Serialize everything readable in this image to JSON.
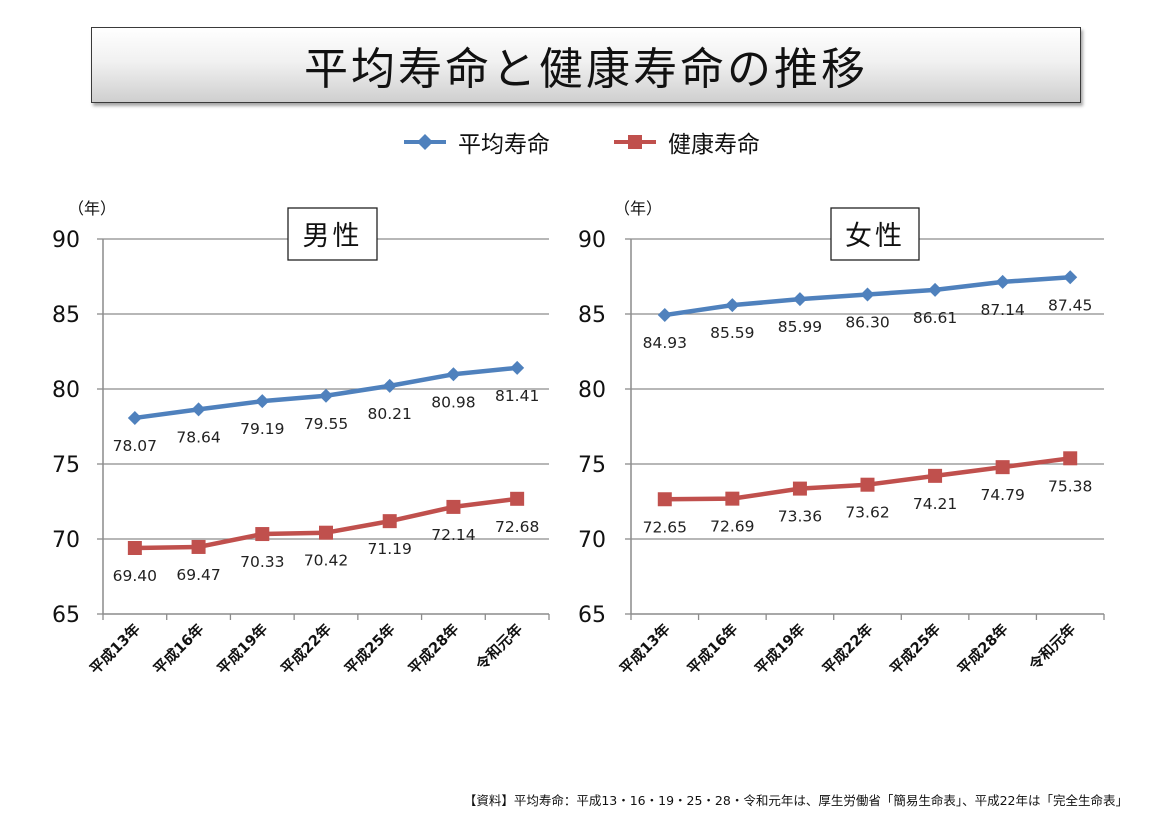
{
  "title": "平均寿命と健康寿命の推移",
  "legend": {
    "series1": "平均寿命",
    "series2": "健康寿命"
  },
  "colors": {
    "series1": "#4f81bd",
    "series2": "#c0504d",
    "grid": "#8c8c8c"
  },
  "source_note": "【資料】平均寿命：平成13・16・19・25・28・令和元年は、厚生労働省「簡易生命表」、平成22年は「完全生命表」",
  "chart_data": [
    {
      "type": "line",
      "title": "男性",
      "unit_label": "（年）",
      "categories": [
        "平成13年",
        "平成16年",
        "平成19年",
        "平成22年",
        "平成25年",
        "平成28年",
        "令和元年"
      ],
      "y_ticks": [
        65,
        70,
        75,
        80,
        85,
        90
      ],
      "ylim": [
        65,
        90
      ],
      "grid": true,
      "series": [
        {
          "name": "平均寿命",
          "marker": "diamond",
          "values": [
            78.07,
            78.64,
            79.19,
            79.55,
            80.21,
            80.98,
            81.41
          ],
          "labels": [
            "78.07",
            "78.64",
            "79.19",
            "79.55",
            "80.21",
            "80.98",
            "81.41"
          ]
        },
        {
          "name": "健康寿命",
          "marker": "square",
          "values": [
            69.4,
            69.47,
            70.33,
            70.42,
            71.19,
            72.14,
            72.68
          ],
          "labels": [
            "69.40",
            "69.47",
            "70.33",
            "70.42",
            "71.19",
            "72.14",
            "72.68"
          ]
        }
      ]
    },
    {
      "type": "line",
      "title": "女性",
      "unit_label": "（年）",
      "categories": [
        "平成13年",
        "平成16年",
        "平成19年",
        "平成22年",
        "平成25年",
        "平成28年",
        "令和元年"
      ],
      "y_ticks": [
        65,
        70,
        75,
        80,
        85,
        90
      ],
      "ylim": [
        65,
        90
      ],
      "grid": true,
      "series": [
        {
          "name": "平均寿命",
          "marker": "diamond",
          "values": [
            84.93,
            85.59,
            85.99,
            86.3,
            86.61,
            87.14,
            87.45
          ],
          "labels": [
            "84.93",
            "85.59",
            "85.99",
            "86.30",
            "86.61",
            "87.14",
            "87.45"
          ]
        },
        {
          "name": "健康寿命",
          "marker": "square",
          "values": [
            72.65,
            72.69,
            73.36,
            73.62,
            74.21,
            74.79,
            75.38
          ],
          "labels": [
            "72.65",
            "72.69",
            "73.36",
            "73.62",
            "74.21",
            "74.79",
            "75.38"
          ]
        }
      ]
    }
  ]
}
